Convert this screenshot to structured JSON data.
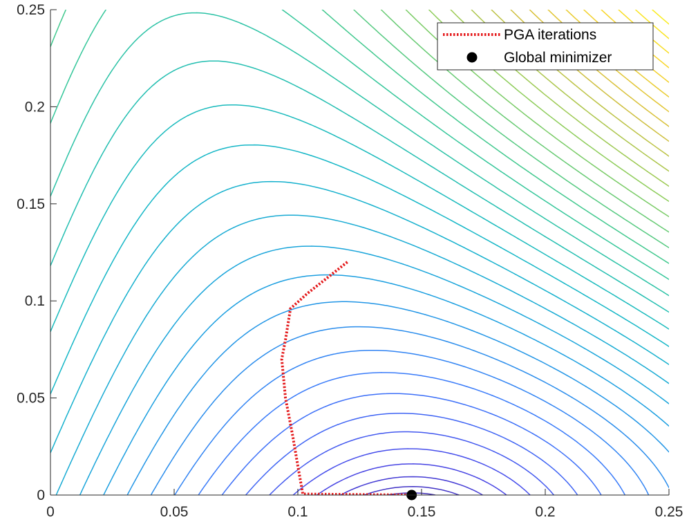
{
  "chart_data": {
    "type": "contour",
    "title": "",
    "xlabel": "",
    "ylabel": "",
    "xlim": [
      0,
      0.25
    ],
    "ylim": [
      0,
      0.25
    ],
    "x_ticks": [
      "0",
      "0.05",
      "0.1",
      "0.15",
      "0.2",
      "0.25"
    ],
    "y_ticks": [
      "0",
      "0.05",
      "0.1",
      "0.15",
      "0.2",
      "0.25"
    ],
    "grid": false,
    "colormap": "parula",
    "contour_colors_low_to_high": [
      "#3e26a8",
      "#4745e8",
      "#3a77fb",
      "#1a9ee0",
      "#12b8c4",
      "#39c891",
      "#8ccc58",
      "#d2bd3a",
      "#f8d327",
      "#f9f31b"
    ],
    "series": [
      {
        "name": "PGA iterations",
        "style": "dotted",
        "color": "#e41a1c",
        "points": [
          [
            0.12,
            0.12
          ],
          [
            0.112,
            0.112
          ],
          [
            0.104,
            0.104
          ],
          [
            0.097,
            0.096
          ],
          [
            0.095,
            0.08
          ],
          [
            0.0935,
            0.07
          ],
          [
            0.095,
            0.05
          ],
          [
            0.098,
            0.03
          ],
          [
            0.1,
            0.015
          ],
          [
            0.102,
            0.0005
          ],
          [
            0.148,
            0.0
          ]
        ]
      },
      {
        "name": "Global minimizer",
        "style": "marker",
        "color": "#000000",
        "points": [
          [
            0.146,
            0.0
          ]
        ]
      }
    ],
    "legend": {
      "location": "top-right",
      "entries": [
        "PGA iterations",
        "Global minimizer"
      ]
    }
  }
}
